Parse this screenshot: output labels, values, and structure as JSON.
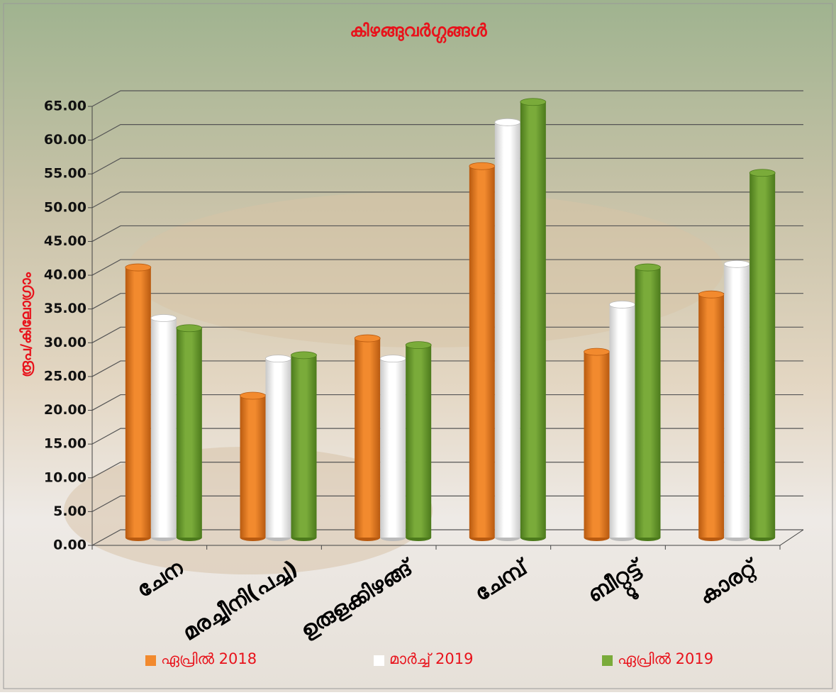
{
  "chart_data": {
    "type": "bar",
    "title": "കിഴങ്ങുവർഗ്ഗങ്ങൾ",
    "y_label": "രൂപ/കിലോഗ്രാം",
    "categories": [
      "ചേന",
      "മരച്ചീനി(പച്ച)",
      "ഉരുളക്കിഴങ്ങ്",
      "ചേമ്പ്",
      "ബീറ്റ്റൂട്ട്",
      "കാരറ്റ്"
    ],
    "series": [
      {
        "name": "ഏപ്രിൽ 2018",
        "color": "#f28a2e",
        "values": [
          40,
          21,
          29.5,
          55,
          27.5,
          36
        ]
      },
      {
        "name": "മാർച്ച്  2019",
        "color": "#ffffff",
        "values": [
          32.5,
          26.5,
          26.5,
          61.5,
          34.5,
          40.5
        ]
      },
      {
        "name": "ഏപ്രിൽ  2019",
        "color": "#7aab3a",
        "values": [
          31,
          27,
          28.5,
          64.5,
          40,
          54
        ]
      }
    ],
    "ylim": [
      0,
      65
    ],
    "yticks": [
      {
        "value": 0,
        "label": "0.00"
      },
      {
        "value": 5,
        "label": "5.00"
      },
      {
        "value": 10,
        "label": "10.00"
      },
      {
        "value": 15,
        "label": "15.00"
      },
      {
        "value": 20,
        "label": "20.00"
      },
      {
        "value": 25,
        "label": "25.00"
      },
      {
        "value": 30,
        "label": "30.00"
      },
      {
        "value": 35,
        "label": "35.00"
      },
      {
        "value": 40,
        "label": "40.00"
      },
      {
        "value": 45,
        "label": "45.00"
      },
      {
        "value": 50,
        "label": "50.00"
      },
      {
        "value": 55,
        "label": "55.00"
      },
      {
        "value": 60,
        "label": "60.00"
      },
      {
        "value": 65,
        "label": "65.00"
      }
    ],
    "grid": true
  }
}
